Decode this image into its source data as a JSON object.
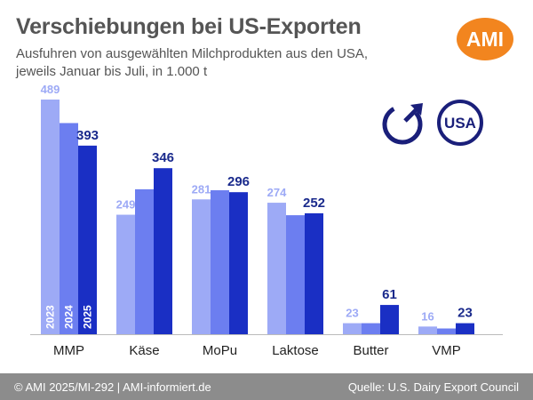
{
  "header": {
    "title": "Verschiebungen bei US-Exporten",
    "subtitle": "Ausfuhren von ausgewählten Milchprodukten aus den USA, jeweils Januar bis Juli, in 1.000 t",
    "logo_text": "AMI"
  },
  "badges": {
    "usa_label": "USA",
    "arrow_icon": "trend-up-arrow-icon",
    "circle_color": "#1a1f7a"
  },
  "footer": {
    "copyright": "© AMI 2025/MI-292 | AMI-informiert.de",
    "source": "Quelle: U.S. Dairy Export Council"
  },
  "colors": {
    "brand_orange": "#f2851f",
    "series_2023": "#9daaf6",
    "series_2024": "#6c7ef0",
    "series_2025": "#1a2fc4",
    "footer_bg": "#8c8c8c"
  },
  "chart_data": {
    "type": "bar",
    "categories": [
      "MMP",
      "Käse",
      "MoPu",
      "Laktose",
      "Butter",
      "VMP"
    ],
    "series": [
      {
        "name": "2023",
        "values": [
          489,
          249,
          281,
          274,
          23,
          16
        ]
      },
      {
        "name": "2024",
        "values": [
          440,
          302,
          300,
          248,
          23,
          12
        ]
      },
      {
        "name": "2025",
        "values": [
          393,
          346,
          296,
          252,
          61,
          23
        ]
      }
    ],
    "data_labels": [
      [
        "489",
        "249",
        "281",
        "274",
        "23",
        "16"
      ],
      [
        "",
        "",
        "",
        "",
        "",
        ""
      ],
      [
        "393",
        "346",
        "296",
        "252",
        "61",
        "23"
      ]
    ],
    "ylim": [
      0,
      500
    ],
    "grid": false,
    "legend": "inside-first-bars"
  }
}
